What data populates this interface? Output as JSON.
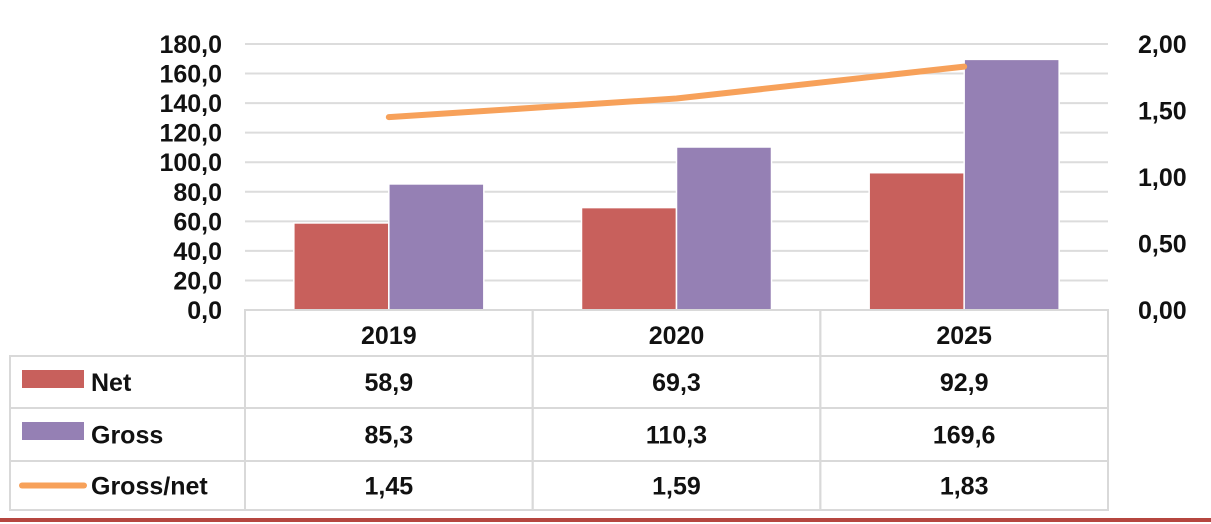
{
  "chart_data": {
    "type": "bar",
    "categories": [
      "2019",
      "2020",
      "2025"
    ],
    "series": [
      {
        "name": "Net",
        "kind": "bar",
        "axis": "left",
        "color": "#c8605c",
        "values": [
          58.9,
          69.3,
          92.9
        ],
        "labels": [
          "58,9",
          "69,3",
          "92,9"
        ]
      },
      {
        "name": "Gross",
        "kind": "bar",
        "axis": "left",
        "color": "#9580b4",
        "values": [
          85.3,
          110.3,
          169.6
        ],
        "labels": [
          "85,3",
          "110,3",
          "169,6"
        ]
      },
      {
        "name": "Gross/net",
        "kind": "line",
        "axis": "right",
        "color": "#f7a15a",
        "values": [
          1.45,
          1.59,
          1.83
        ],
        "labels": [
          "1,45",
          "1,59",
          "1,83"
        ]
      }
    ],
    "y_left": {
      "min": 0,
      "max": 180,
      "ticks": [
        0,
        20,
        40,
        60,
        80,
        100,
        120,
        140,
        160,
        180
      ],
      "tick_labels": [
        "0,0",
        "20,0",
        "40,0",
        "60,0",
        "80,0",
        "100,0",
        "120,0",
        "140,0",
        "160,0",
        "180,0"
      ]
    },
    "y_right": {
      "min": 0,
      "max": 2,
      "ticks": [
        0,
        0.5,
        1,
        1.5,
        2
      ],
      "tick_labels": [
        "0,00",
        "0,50",
        "1,00",
        "1,50",
        "2,00"
      ]
    },
    "grid": true,
    "legend": "data-table",
    "title": "",
    "xlabel": "",
    "ylabel": ""
  }
}
